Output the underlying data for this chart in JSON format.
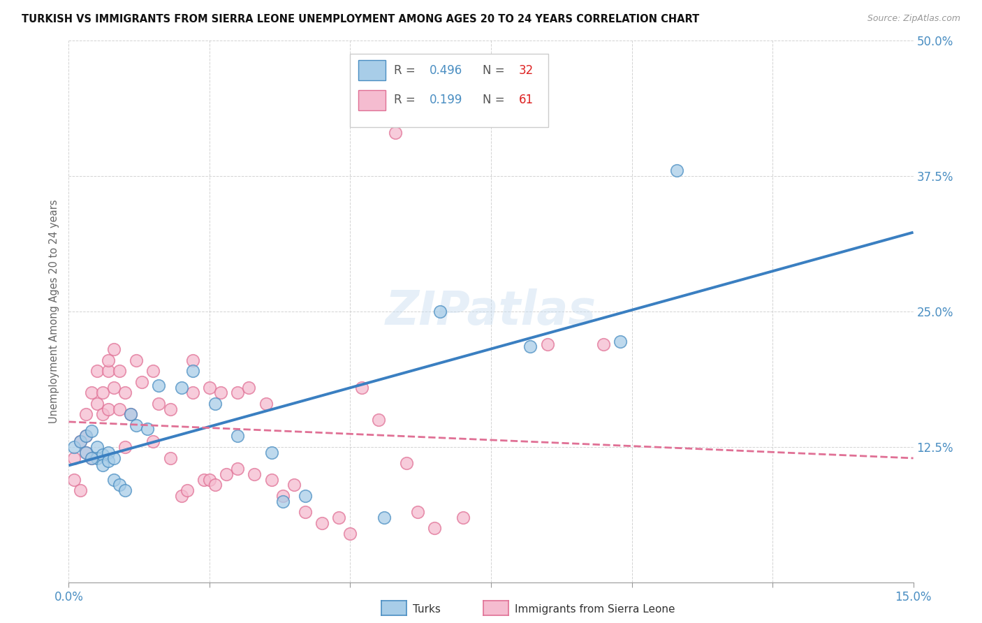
{
  "title": "TURKISH VS IMMIGRANTS FROM SIERRA LEONE UNEMPLOYMENT AMONG AGES 20 TO 24 YEARS CORRELATION CHART",
  "source": "Source: ZipAtlas.com",
  "ylabel": "Unemployment Among Ages 20 to 24 years",
  "xlim": [
    0.0,
    0.15
  ],
  "ylim": [
    0.0,
    0.5
  ],
  "yticks": [
    0.0,
    0.125,
    0.25,
    0.375,
    0.5
  ],
  "ytick_labels": [
    "",
    "12.5%",
    "25.0%",
    "37.5%",
    "50.0%"
  ],
  "xticks": [
    0.0,
    0.025,
    0.05,
    0.075,
    0.1,
    0.125,
    0.15
  ],
  "xtick_labels": [
    "0.0%",
    "",
    "",
    "",
    "",
    "",
    "15.0%"
  ],
  "turks_R": "0.496",
  "turks_N": "32",
  "sl_R": "0.199",
  "sl_N": "61",
  "turks_color": "#a8cde8",
  "turks_edge_color": "#4a8ec2",
  "sl_color": "#f5bcd0",
  "sl_edge_color": "#e07095",
  "turks_line_color": "#3a7fc1",
  "sl_line_color": "#e07095",
  "tick_color": "#4a8ec2",
  "watermark": "ZIPatlas",
  "turks_x": [
    0.001,
    0.002,
    0.003,
    0.003,
    0.004,
    0.005,
    0.005,
    0.006,
    0.006,
    0.007,
    0.008,
    0.009,
    0.01,
    0.011,
    0.012,
    0.014,
    0.02,
    0.022,
    0.026,
    0.03,
    0.036,
    0.038,
    0.042,
    0.056,
    0.082,
    0.098,
    0.108,
    0.004,
    0.007,
    0.008,
    0.016,
    0.066
  ],
  "turks_y": [
    0.125,
    0.13,
    0.135,
    0.12,
    0.14,
    0.125,
    0.115,
    0.118,
    0.108,
    0.12,
    0.095,
    0.09,
    0.085,
    0.155,
    0.145,
    0.142,
    0.18,
    0.195,
    0.165,
    0.135,
    0.12,
    0.075,
    0.08,
    0.06,
    0.218,
    0.222,
    0.38,
    0.115,
    0.112,
    0.115,
    0.182,
    0.25
  ],
  "sl_x": [
    0.001,
    0.001,
    0.002,
    0.002,
    0.003,
    0.003,
    0.003,
    0.004,
    0.004,
    0.005,
    0.005,
    0.006,
    0.006,
    0.007,
    0.007,
    0.007,
    0.008,
    0.008,
    0.009,
    0.009,
    0.01,
    0.01,
    0.011,
    0.012,
    0.013,
    0.015,
    0.015,
    0.016,
    0.018,
    0.018,
    0.02,
    0.021,
    0.022,
    0.022,
    0.024,
    0.025,
    0.025,
    0.026,
    0.027,
    0.028,
    0.03,
    0.03,
    0.032,
    0.033,
    0.035,
    0.036,
    0.038,
    0.04,
    0.042,
    0.045,
    0.048,
    0.05,
    0.052,
    0.055,
    0.058,
    0.06,
    0.062,
    0.065,
    0.07,
    0.085,
    0.095
  ],
  "sl_y": [
    0.115,
    0.095,
    0.13,
    0.085,
    0.12,
    0.135,
    0.155,
    0.175,
    0.115,
    0.165,
    0.195,
    0.155,
    0.175,
    0.195,
    0.205,
    0.16,
    0.18,
    0.215,
    0.195,
    0.16,
    0.175,
    0.125,
    0.155,
    0.205,
    0.185,
    0.13,
    0.195,
    0.165,
    0.16,
    0.115,
    0.08,
    0.085,
    0.175,
    0.205,
    0.095,
    0.095,
    0.18,
    0.09,
    0.175,
    0.1,
    0.105,
    0.175,
    0.18,
    0.1,
    0.165,
    0.095,
    0.08,
    0.09,
    0.065,
    0.055,
    0.06,
    0.045,
    0.18,
    0.15,
    0.415,
    0.11,
    0.065,
    0.05,
    0.06,
    0.22,
    0.22
  ]
}
